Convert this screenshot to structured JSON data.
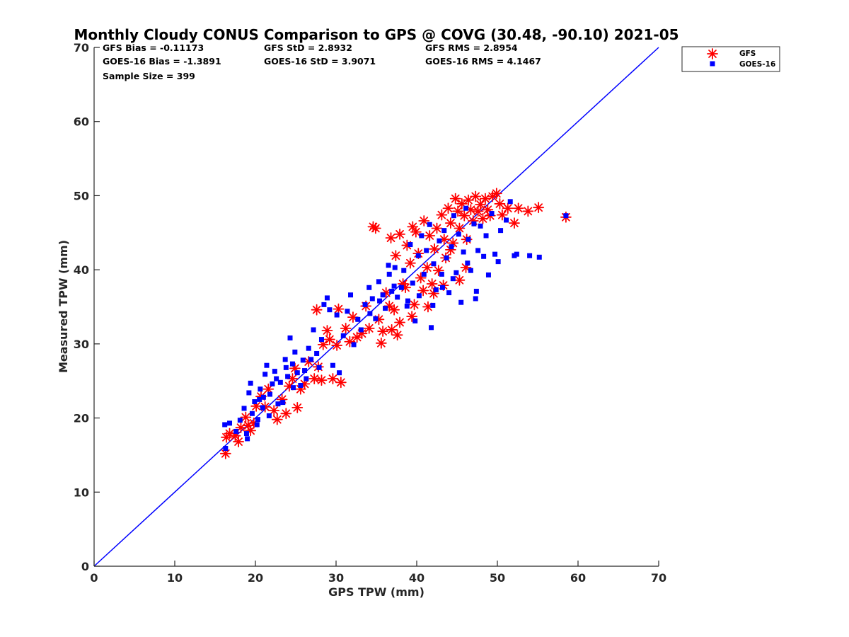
{
  "colors": {
    "gfs": "#ff0000",
    "goes": "#0000ff",
    "axis": "#262626",
    "line": "#0000ff"
  },
  "chart_data": {
    "type": "scatter",
    "title": "Monthly Cloudy CONUS Comparison to GPS @ COVG (30.48, -90.10) 2021-05",
    "xlabel": "GPS TPW (mm)",
    "ylabel": "Measured TPW (mm)",
    "xlim": [
      0,
      70
    ],
    "ylim": [
      0,
      70
    ],
    "xticks": [
      "0",
      "10",
      "20",
      "30",
      "40",
      "50",
      "60",
      "70"
    ],
    "yticks": [
      "0",
      "10",
      "20",
      "30",
      "40",
      "50",
      "60",
      "70"
    ],
    "grid": false,
    "legend_position": "top-right",
    "reference_line": {
      "from": [
        0,
        0
      ],
      "to": [
        70,
        70
      ]
    },
    "stats": {
      "gfs_bias": "GFS Bias = -0.11173",
      "gfs_std": "GFS StD = 2.8932",
      "gfs_rms": "GFS RMS = 2.8954",
      "goes_bias": "GOES-16 Bias = -1.3891",
      "goes_std": "GOES-16 StD = 3.9071",
      "goes_rms": "GOES-16 RMS = 4.1467",
      "sample_size": "Sample Size = 399"
    },
    "series": [
      {
        "name": "GFS",
        "marker": "asterisk",
        "points": [
          [
            16.3,
            15.2
          ],
          [
            16.4,
            17.4
          ],
          [
            16.8,
            17.9
          ],
          [
            17.5,
            17.6
          ],
          [
            17.9,
            16.8
          ],
          [
            18.2,
            18.7
          ],
          [
            18.8,
            20.1
          ],
          [
            19.1,
            19.0
          ],
          [
            19.4,
            18.3
          ],
          [
            19.8,
            19.3
          ],
          [
            20.1,
            21.6
          ],
          [
            20.7,
            22.9
          ],
          [
            21.2,
            21.5
          ],
          [
            21.6,
            23.9
          ],
          [
            22.3,
            21.0
          ],
          [
            22.7,
            19.8
          ],
          [
            23.3,
            22.5
          ],
          [
            23.8,
            20.6
          ],
          [
            24.2,
            24.3
          ],
          [
            24.6,
            25.3
          ],
          [
            24.9,
            26.7
          ],
          [
            25.2,
            21.4
          ],
          [
            25.6,
            23.9
          ],
          [
            26.1,
            24.6
          ],
          [
            26.6,
            27.6
          ],
          [
            27.3,
            25.3
          ],
          [
            27.8,
            26.9
          ],
          [
            28.2,
            25.1
          ],
          [
            27.6,
            34.6
          ],
          [
            28.4,
            29.9
          ],
          [
            28.9,
            31.8
          ],
          [
            29.2,
            30.6
          ],
          [
            29.6,
            25.3
          ],
          [
            30.1,
            29.8
          ],
          [
            30.6,
            24.8
          ],
          [
            30.3,
            34.7
          ],
          [
            31.2,
            32.1
          ],
          [
            31.7,
            30.3
          ],
          [
            32.1,
            33.6
          ],
          [
            32.6,
            30.9
          ],
          [
            33.2,
            31.4
          ],
          [
            33.7,
            35.1
          ],
          [
            34.1,
            32.1
          ],
          [
            34.6,
            45.8
          ],
          [
            34.9,
            45.6
          ],
          [
            35.3,
            33.3
          ],
          [
            35.6,
            30.1
          ],
          [
            35.8,
            31.7
          ],
          [
            36.2,
            36.9
          ],
          [
            36.6,
            35.1
          ],
          [
            36.9,
            31.9
          ],
          [
            37.2,
            34.6
          ],
          [
            37.6,
            31.2
          ],
          [
            37.9,
            32.9
          ],
          [
            36.8,
            44.3
          ],
          [
            37.4,
            41.9
          ],
          [
            37.9,
            44.8
          ],
          [
            38.3,
            38.1
          ],
          [
            38.6,
            37.6
          ],
          [
            39.2,
            40.9
          ],
          [
            39.4,
            33.7
          ],
          [
            39.7,
            35.3
          ],
          [
            39.9,
            45.1
          ],
          [
            40.2,
            42.2
          ],
          [
            40.5,
            38.9
          ],
          [
            40.9,
            46.6
          ],
          [
            41.3,
            40.3
          ],
          [
            41.6,
            44.6
          ],
          [
            41.9,
            38.1
          ],
          [
            42.2,
            42.8
          ],
          [
            42.5,
            45.6
          ],
          [
            42.7,
            39.9
          ],
          [
            43.1,
            47.4
          ],
          [
            43.4,
            44.1
          ],
          [
            43.6,
            41.6
          ],
          [
            43.9,
            48.3
          ],
          [
            44.2,
            46.3
          ],
          [
            44.5,
            43.6
          ],
          [
            44.8,
            49.6
          ],
          [
            45.1,
            47.9
          ],
          [
            45.3,
            45.6
          ],
          [
            45.6,
            48.9
          ],
          [
            45.9,
            47.3
          ],
          [
            46.2,
            44.1
          ],
          [
            46.4,
            49.4
          ],
          [
            46.7,
            48.1
          ],
          [
            47.0,
            46.6
          ],
          [
            47.3,
            49.9
          ],
          [
            47.6,
            47.9
          ],
          [
            47.9,
            48.8
          ],
          [
            48.2,
            46.9
          ],
          [
            48.5,
            49.6
          ],
          [
            48.8,
            48.1
          ],
          [
            49.1,
            47.3
          ],
          [
            49.4,
            49.9
          ],
          [
            49.9,
            50.3
          ],
          [
            50.3,
            48.9
          ],
          [
            50.6,
            47.4
          ],
          [
            51.3,
            48.3
          ],
          [
            52.1,
            46.3
          ],
          [
            52.6,
            48.3
          ],
          [
            53.8,
            47.9
          ],
          [
            55.1,
            48.4
          ],
          [
            58.5,
            47.1
          ],
          [
            46.1,
            40.3
          ],
          [
            45.3,
            38.6
          ],
          [
            44.2,
            42.7
          ],
          [
            43.3,
            37.9
          ],
          [
            42.1,
            36.8
          ],
          [
            40.8,
            37.2
          ],
          [
            41.4,
            35.0
          ],
          [
            38.8,
            43.3
          ],
          [
            39.5,
            45.8
          ]
        ]
      },
      {
        "name": "GOES-16",
        "marker": "square",
        "points": [
          [
            16.2,
            19.1
          ],
          [
            16.3,
            15.9
          ],
          [
            16.8,
            19.3
          ],
          [
            17.6,
            18.2
          ],
          [
            18.1,
            19.7
          ],
          [
            18.6,
            21.3
          ],
          [
            18.9,
            17.9
          ],
          [
            19.2,
            23.4
          ],
          [
            19.4,
            24.7
          ],
          [
            19.6,
            20.6
          ],
          [
            19.9,
            22.2
          ],
          [
            20.3,
            19.8
          ],
          [
            20.6,
            23.9
          ],
          [
            20.9,
            21.4
          ],
          [
            21.2,
            25.9
          ],
          [
            21.4,
            27.1
          ],
          [
            21.7,
            20.3
          ],
          [
            22.1,
            24.6
          ],
          [
            22.4,
            26.3
          ],
          [
            22.8,
            21.9
          ],
          [
            23.1,
            24.8
          ],
          [
            23.4,
            22.1
          ],
          [
            23.7,
            27.9
          ],
          [
            24.0,
            25.6
          ],
          [
            24.3,
            30.8
          ],
          [
            24.6,
            27.3
          ],
          [
            24.9,
            28.9
          ],
          [
            25.2,
            26.1
          ],
          [
            25.6,
            24.4
          ],
          [
            25.9,
            27.8
          ],
          [
            26.3,
            25.3
          ],
          [
            26.6,
            29.4
          ],
          [
            26.9,
            27.9
          ],
          [
            27.2,
            31.9
          ],
          [
            27.6,
            28.7
          ],
          [
            27.9,
            26.8
          ],
          [
            28.2,
            30.6
          ],
          [
            28.5,
            35.3
          ],
          [
            28.9,
            36.2
          ],
          [
            29.2,
            34.6
          ],
          [
            29.6,
            27.1
          ],
          [
            30.1,
            33.9
          ],
          [
            30.4,
            26.1
          ],
          [
            30.9,
            31.1
          ],
          [
            31.4,
            34.4
          ],
          [
            31.8,
            36.6
          ],
          [
            32.2,
            29.9
          ],
          [
            32.7,
            33.3
          ],
          [
            33.1,
            31.9
          ],
          [
            33.6,
            35.3
          ],
          [
            34.1,
            37.6
          ],
          [
            34.5,
            36.1
          ],
          [
            34.9,
            33.4
          ],
          [
            35.3,
            38.4
          ],
          [
            35.8,
            36.6
          ],
          [
            36.1,
            34.8
          ],
          [
            36.6,
            39.4
          ],
          [
            36.9,
            37.1
          ],
          [
            37.3,
            40.3
          ],
          [
            37.6,
            36.3
          ],
          [
            38.1,
            37.6
          ],
          [
            38.4,
            39.9
          ],
          [
            38.8,
            35.1
          ],
          [
            39.2,
            43.4
          ],
          [
            39.5,
            38.2
          ],
          [
            39.8,
            33.1
          ],
          [
            40.2,
            41.9
          ],
          [
            40.6,
            44.6
          ],
          [
            40.9,
            39.4
          ],
          [
            41.2,
            42.6
          ],
          [
            41.6,
            46.1
          ],
          [
            41.8,
            32.2
          ],
          [
            42.1,
            40.8
          ],
          [
            42.4,
            37.3
          ],
          [
            42.8,
            43.9
          ],
          [
            43.1,
            39.4
          ],
          [
            43.4,
            45.3
          ],
          [
            43.7,
            41.6
          ],
          [
            44.0,
            36.9
          ],
          [
            44.3,
            43.1
          ],
          [
            44.6,
            47.3
          ],
          [
            44.9,
            39.6
          ],
          [
            45.2,
            44.8
          ],
          [
            45.5,
            35.6
          ],
          [
            45.8,
            42.4
          ],
          [
            46.1,
            48.3
          ],
          [
            46.4,
            44.1
          ],
          [
            46.7,
            39.9
          ],
          [
            47.1,
            46.2
          ],
          [
            47.4,
            37.1
          ],
          [
            47.6,
            42.6
          ],
          [
            47.9,
            45.9
          ],
          [
            48.3,
            41.8
          ],
          [
            48.6,
            44.6
          ],
          [
            48.9,
            39.3
          ],
          [
            49.3,
            47.6
          ],
          [
            49.7,
            42.1
          ],
          [
            50.1,
            41.1
          ],
          [
            50.4,
            45.3
          ],
          [
            51.1,
            46.7
          ],
          [
            51.6,
            49.2
          ],
          [
            52.1,
            41.9
          ],
          [
            52.4,
            42.1
          ],
          [
            54.0,
            41.9
          ],
          [
            55.2,
            41.7
          ],
          [
            58.5,
            47.3
          ],
          [
            47.3,
            36.1
          ],
          [
            46.3,
            40.9
          ],
          [
            44.5,
            38.8
          ],
          [
            43.2,
            37.6
          ],
          [
            42.0,
            35.2
          ],
          [
            40.3,
            36.5
          ],
          [
            38.9,
            35.8
          ],
          [
            37.2,
            37.8
          ],
          [
            36.5,
            40.6
          ],
          [
            35.4,
            35.8
          ],
          [
            34.2,
            34.1
          ],
          [
            22.6,
            25.3
          ],
          [
            21.0,
            22.8
          ],
          [
            20.2,
            19.1
          ],
          [
            19.0,
            17.2
          ],
          [
            23.8,
            26.8
          ],
          [
            26.1,
            26.4
          ],
          [
            24.7,
            24.1
          ],
          [
            21.8,
            23.2
          ],
          [
            20.5,
            22.5
          ]
        ]
      }
    ]
  }
}
